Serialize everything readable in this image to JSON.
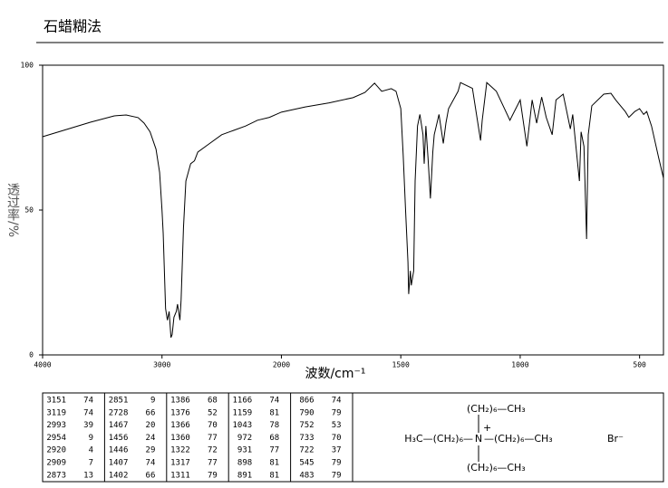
{
  "header": {
    "title": "石蜡糊法"
  },
  "chart_data": {
    "type": "line",
    "x_label": "波数/cm⁻¹",
    "y_label": "透过率/%",
    "xlim": [
      4000,
      400
    ],
    "xticks": [
      4000,
      3000,
      2000,
      1500,
      1000,
      500
    ],
    "ylim": [
      0,
      100
    ],
    "yticks": [
      0,
      50,
      100
    ],
    "color": "#000000",
    "x": [
      4000,
      3800,
      3600,
      3400,
      3300,
      3200,
      3150,
      3100,
      3050,
      3020,
      3000,
      2990,
      2970,
      2955,
      2940,
      2925,
      2915,
      2900,
      2880,
      2870,
      2850,
      2840,
      2820,
      2800,
      2760,
      2728,
      2700,
      2600,
      2500,
      2400,
      2300,
      2200,
      2100,
      2000,
      1900,
      1800,
      1700,
      1650,
      1610,
      1580,
      1540,
      1520,
      1500,
      1490,
      1480,
      1470,
      1467,
      1460,
      1456,
      1446,
      1440,
      1430,
      1420,
      1407,
      1402,
      1395,
      1386,
      1376,
      1366,
      1360,
      1340,
      1322,
      1311,
      1300,
      1260,
      1250,
      1200,
      1166,
      1159,
      1140,
      1100,
      1043,
      1000,
      972,
      950,
      931,
      910,
      891,
      866,
      850,
      820,
      790,
      780,
      752,
      745,
      733,
      722,
      715,
      700,
      650,
      620,
      600,
      560,
      545,
      520,
      500,
      483,
      470,
      450,
      420,
      400
    ],
    "values": [
      75.3,
      77.8,
      80.3,
      82.5,
      82.8,
      81.9,
      80,
      77,
      71,
      63,
      50,
      42,
      16,
      12,
      15,
      6,
      7,
      13,
      15,
      17.5,
      12,
      19,
      44,
      60,
      66,
      67,
      70,
      73,
      76,
      77.5,
      79,
      81,
      82,
      83.8,
      85.6,
      87,
      88.8,
      90.6,
      93.8,
      91,
      91.9,
      91,
      85,
      69,
      50,
      32,
      21,
      29,
      24,
      29,
      60,
      79,
      83,
      76,
      66,
      79,
      68,
      54,
      70,
      76,
      83,
      73,
      80,
      85,
      91,
      94,
      92,
      74,
      81,
      94,
      91,
      81,
      88,
      72,
      88,
      80,
      89,
      82,
      76,
      88,
      90,
      78,
      83,
      60,
      77,
      72,
      40,
      76,
      86,
      90,
      90.3,
      88,
      84,
      82,
      84,
      85,
      83,
      84,
      79,
      68,
      61
    ]
  },
  "peak_table": {
    "columns": [
      [
        [
          3151,
          74
        ],
        [
          3119,
          74
        ],
        [
          2993,
          39
        ],
        [
          2954,
          9
        ],
        [
          2920,
          4
        ],
        [
          2909,
          7
        ],
        [
          2873,
          13
        ]
      ],
      [
        [
          2851,
          9
        ],
        [
          2728,
          66
        ],
        [
          1467,
          20
        ],
        [
          1456,
          24
        ],
        [
          1446,
          29
        ],
        [
          1407,
          74
        ],
        [
          1402,
          66
        ]
      ],
      [
        [
          1386,
          68
        ],
        [
          1376,
          52
        ],
        [
          1366,
          70
        ],
        [
          1360,
          77
        ],
        [
          1322,
          72
        ],
        [
          1317,
          77
        ],
        [
          1311,
          79
        ]
      ],
      [
        [
          1166,
          74
        ],
        [
          1159,
          81
        ],
        [
          1043,
          78
        ],
        [
          972,
          68
        ],
        [
          931,
          77
        ],
        [
          898,
          81
        ],
        [
          891,
          81
        ]
      ],
      [
        [
          866,
          74
        ],
        [
          790,
          79
        ],
        [
          752,
          53
        ],
        [
          733,
          70
        ],
        [
          722,
          37
        ],
        [
          545,
          79
        ],
        [
          483,
          79
        ]
      ]
    ]
  },
  "structure": {
    "top": "(CH₂)₆—CH₃",
    "left": "H₃C—(CH₂)₆—",
    "center": "N",
    "charge": "+",
    "right": "—(CH₂)₆—CH₃",
    "bottom": "(CH₂)₆—CH₃",
    "counter_ion": "Br⁻"
  }
}
